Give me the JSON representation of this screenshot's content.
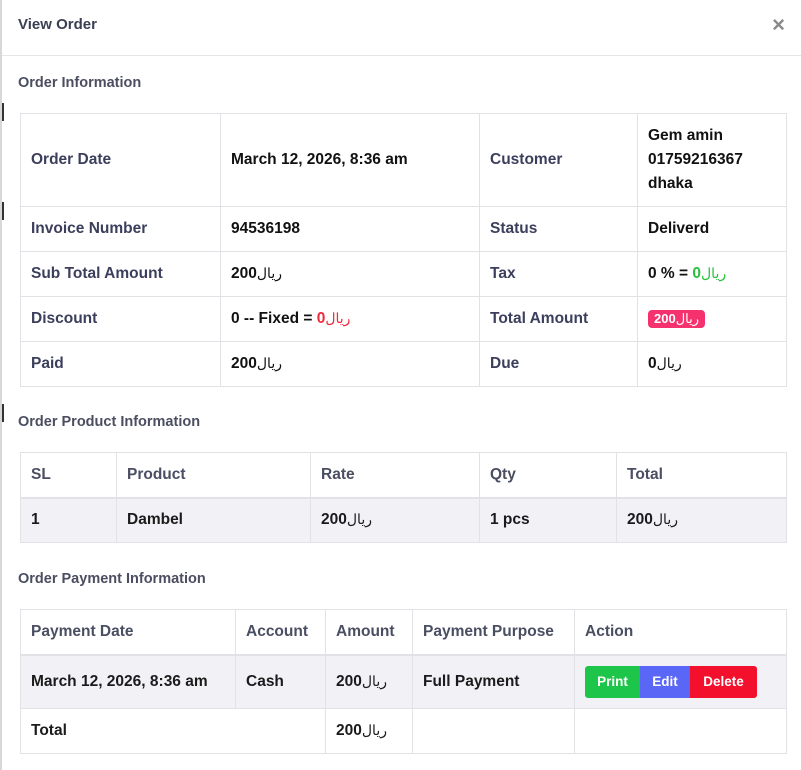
{
  "modal": {
    "title": "View Order",
    "close_symbol": "×"
  },
  "sections": {
    "order_info": "Order Information",
    "product_info": "Order Product Information",
    "payment_info": "Order Payment Information"
  },
  "currency": "ریال",
  "order": {
    "order_date_label": "Order Date",
    "order_date": "March 12, 2026, 8:36 am",
    "customer_label": "Customer",
    "customer_name": "Gem amin",
    "customer_phone": "01759216367",
    "customer_city": "dhaka",
    "invoice_label": "Invoice Number",
    "invoice_number": "94536198",
    "status_label": "Status",
    "status": "Deliverd",
    "subtotal_label": "Sub Total Amount",
    "subtotal": "200",
    "tax_label": "Tax",
    "tax_prefix": "0 % = ",
    "tax_amount": "0",
    "discount_label": "Discount",
    "discount_prefix": "0 -- Fixed = ",
    "discount_amount": "0",
    "total_label": "Total Amount",
    "total": "200",
    "paid_label": "Paid",
    "paid": "200",
    "due_label": "Due",
    "due": "0"
  },
  "products": {
    "headers": [
      "SL",
      "Product",
      "Rate",
      "Qty",
      "Total"
    ],
    "rows": [
      {
        "sl": "1",
        "product": "Dambel",
        "rate": "200",
        "qty": "1 pcs",
        "total": "200"
      }
    ]
  },
  "payments": {
    "headers": [
      "Payment Date",
      "Account",
      "Amount",
      "Payment Purpose",
      "Action"
    ],
    "rows": [
      {
        "date": "March 12, 2026, 8:36 am",
        "account": "Cash",
        "amount": "200",
        "purpose": "Full Payment"
      }
    ],
    "actions": {
      "print": "Print",
      "edit": "Edit",
      "delete": "Delete"
    },
    "total_label": "Total",
    "total_amount": "200"
  },
  "colors": {
    "blue_value": "#6a73e0",
    "green_value": "#2bbf3e",
    "red_value": "#ef2a3a",
    "badge": "#f5326e",
    "print_button": "#1ec54b",
    "edit_button": "#5a66f5",
    "delete_button": "#f2102c"
  }
}
